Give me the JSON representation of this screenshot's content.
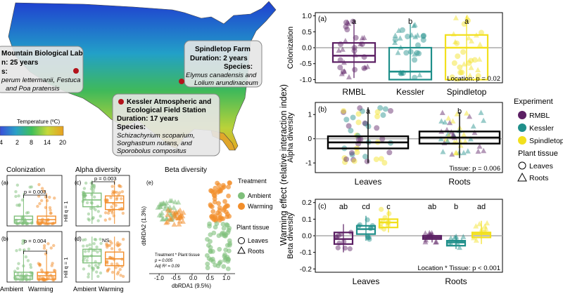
{
  "map": {
    "legend_title": "Temperature (ºC)",
    "legend_ticks": [
      "-4",
      "2",
      "8",
      "14",
      "20"
    ],
    "sites": [
      {
        "lines": [
          "Mountain Biological Lab",
          "n: 25 years",
          "s:",
          "perum lettermanii, Festuca",
          "and Poa pratensis"
        ]
      },
      {
        "lines": [
          "Spindletop Farm",
          "Duration: 2 years",
          "Species:",
          "Elymus canadensis and",
          "Lolium arundinaceum"
        ]
      },
      {
        "lines": [
          "Kessler Atmospheric and",
          "Ecological Field Station",
          "Duration: 17 years",
          "Species:",
          "Schizachyrium scoparium,",
          "Sorghastrum nutans, and",
          "Sporobolus compositus"
        ]
      }
    ]
  },
  "left_panels": {
    "colonization_title": "Colonization",
    "alpha_title": "Alpha diversity",
    "beta_title": "Beta diversity",
    "a_label": "(a)",
    "b_label": "(b)",
    "c_label": "(c)",
    "d_label": "(d)",
    "e_label": "(e)",
    "a_p": "p = 0.003",
    "b_p": "p = 0.004",
    "c_p": "p = 0.003",
    "d_p": "NS",
    "hill_q1": "Hill q = 1",
    "x_ambient": "Ambient",
    "x_warming": "Warming",
    "e_xlabel": "dbRDA1 (9.5%)",
    "e_ylabel": "dbRDA2 (1.3%)",
    "e_xticks": [
      "-1.0",
      "-0.5",
      "0.0",
      "0.5",
      "1.0"
    ],
    "e_stats": [
      "Treatment * Plant tissue",
      "p = 0.005",
      "Adj R² = 0.09"
    ],
    "treatment_title": "Treatment",
    "treatment_items": [
      "Ambient",
      "Warming"
    ],
    "tissue_title": "Plant tissue",
    "tissue_items": [
      "Leaves",
      "Roots"
    ]
  },
  "right_panels": {
    "y_axis_title": "Warming effect (relative interaction index)",
    "a": {
      "label": "(a)",
      "ylabel": "Colonization",
      "yticks": [
        "1.0",
        "0.5",
        "0.0",
        "-0.5",
        "-1.0"
      ],
      "categories": [
        "RMBL",
        "Kessler",
        "Spindletop"
      ],
      "letters": [
        "a",
        "b",
        "a"
      ],
      "note": "Location: p = 0.02"
    },
    "b": {
      "label": "(b)",
      "ylabel": "Alpha diversity",
      "yticks": [
        "1",
        "0",
        "-1"
      ],
      "categories": [
        "Leaves",
        "Roots"
      ],
      "letters": [
        "a",
        "b"
      ],
      "note": "Tissue: p = 0.006"
    },
    "c": {
      "label": "(c)",
      "ylabel": "Beta diversity",
      "yticks": [
        "0.2",
        "0.1",
        "0.0",
        "-0.1",
        "-0.2"
      ],
      "categories": [
        "Leaves",
        "Roots"
      ],
      "letters": [
        "ab",
        "cd",
        "c",
        "ab",
        "b",
        "ad"
      ],
      "note": "Location * Tissue: p < 0.001"
    },
    "legend_experiment_title": "Experiment",
    "legend_experiment": [
      "RMBL",
      "Kessler",
      "Spindletop"
    ],
    "legend_tissue_title": "Plant tissue",
    "legend_tissue": [
      "Leaves",
      "Roots"
    ]
  },
  "colors": {
    "rmbl": "#5b1f63",
    "kessler": "#1f8f8a",
    "spindletop": "#f2e01d",
    "ambient": "#7fbf7b",
    "warming": "#f28e2b"
  },
  "chart_data": [
    {
      "type": "box",
      "panel": "right (a)",
      "ylabel": "Colonization",
      "ylim": [
        -1.1,
        1.1
      ],
      "categories": [
        "RMBL",
        "Kessler",
        "Spindletop"
      ],
      "series": [
        {
          "name": "RMBL",
          "q1": -0.45,
          "median": -0.25,
          "q3": 0.15,
          "whisker_low": -0.95,
          "whisker_high": 0.85
        },
        {
          "name": "Kessler",
          "q1": -1.0,
          "median": -0.75,
          "q3": 0.0,
          "whisker_low": -1.0,
          "whisker_high": 0.75
        },
        {
          "name": "Spindletop",
          "q1": -1.0,
          "median": 0.0,
          "q3": 0.4,
          "whisker_low": -1.0,
          "whisker_high": 1.0
        }
      ],
      "letters": [
        "a",
        "b",
        "a"
      ],
      "annotation": "Location: p = 0.02"
    },
    {
      "type": "box",
      "panel": "right (b)",
      "ylabel": "Alpha diversity",
      "ylim": [
        -1.4,
        1.5
      ],
      "categories": [
        "Leaves",
        "Roots"
      ],
      "series": [
        {
          "name": "Leaves",
          "q1": -0.4,
          "median": -0.15,
          "q3": 0.1,
          "whisker_low": -1.0,
          "whisker_high": 1.3
        },
        {
          "name": "Roots",
          "q1": -0.2,
          "median": 0.05,
          "q3": 0.3,
          "whisker_low": -0.8,
          "whisker_high": 1.1
        }
      ],
      "letters": [
        "a",
        "b"
      ],
      "annotation": "Tissue: p = 0.006"
    },
    {
      "type": "box",
      "panel": "right (c)",
      "ylabel": "Beta diversity",
      "ylim": [
        -0.22,
        0.22
      ],
      "categories": [
        "Leaves",
        "Roots"
      ],
      "groups": [
        "RMBL",
        "Kessler",
        "Spindletop"
      ],
      "series": [
        {
          "name": "RMBL Leaves",
          "q1": -0.05,
          "median": -0.02,
          "q3": 0.02,
          "whisker_low": -0.1,
          "whisker_high": 0.07
        },
        {
          "name": "Kessler Leaves",
          "q1": 0.01,
          "median": 0.04,
          "q3": 0.06,
          "whisker_low": -0.03,
          "whisker_high": 0.12
        },
        {
          "name": "Spindletop Leaves",
          "q1": 0.05,
          "median": 0.08,
          "q3": 0.1,
          "whisker_low": 0.02,
          "whisker_high": 0.16
        },
        {
          "name": "RMBL Roots",
          "q1": -0.02,
          "median": -0.01,
          "q3": 0.0,
          "whisker_low": -0.04,
          "whisker_high": 0.02
        },
        {
          "name": "Kessler Roots",
          "q1": -0.06,
          "median": -0.04,
          "q3": -0.03,
          "whisker_low": -0.08,
          "whisker_high": 0.0
        },
        {
          "name": "Spindletop Roots",
          "q1": -0.01,
          "median": 0.01,
          "q3": 0.02,
          "whisker_low": -0.05,
          "whisker_high": 0.09
        }
      ],
      "letters": [
        "ab",
        "cd",
        "c",
        "ab",
        "b",
        "ad"
      ],
      "annotation": "Location * Tissue: p < 0.001"
    },
    {
      "type": "scatter",
      "panel": "left (e)",
      "title": "Beta diversity",
      "xlabel": "dbRDA1 (9.5%)",
      "ylabel": "dbRDA2 (1.3%)",
      "xlim": [
        -1.3,
        1.3
      ],
      "xticks": [
        -1.0,
        -0.5,
        0.0,
        0.5,
        1.0
      ],
      "series": [
        {
          "name": "Ambient Roots",
          "cluster_center": [
            -0.7,
            0.1
          ]
        },
        {
          "name": "Warming Roots",
          "cluster_center": [
            -0.5,
            0.05
          ]
        },
        {
          "name": "Ambient Leaves",
          "cluster_center": [
            0.85,
            -0.5
          ]
        },
        {
          "name": "Warming Leaves",
          "cluster_center": [
            0.85,
            0.6
          ]
        }
      ],
      "annotation": [
        "Treatment * Plant tissue",
        "p = 0.005",
        "Adj R² = 0.09"
      ]
    }
  ]
}
